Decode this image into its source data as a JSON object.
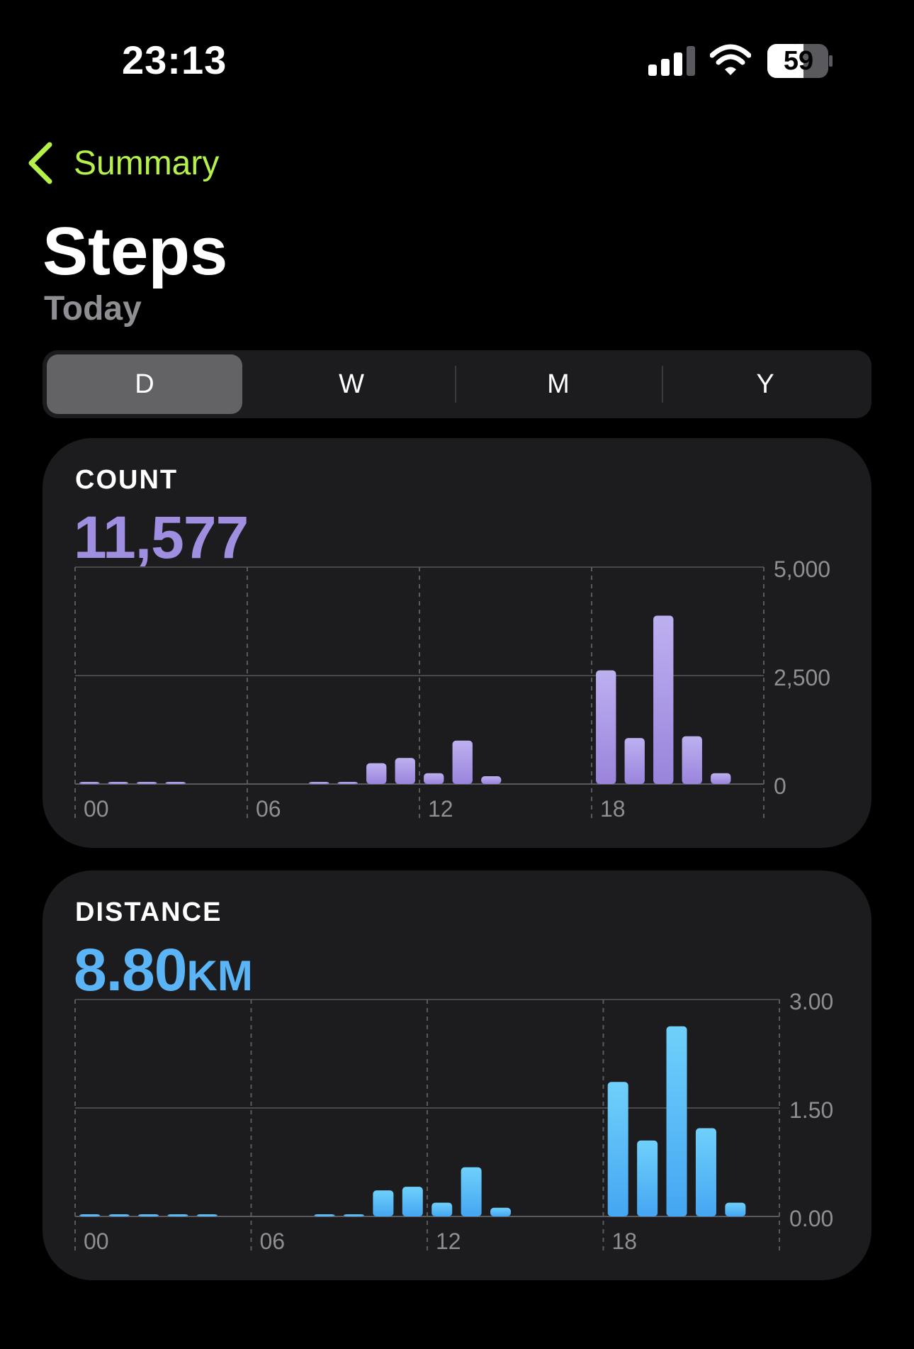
{
  "status_bar": {
    "time": "23:13",
    "battery_level": "59",
    "icons": [
      "cellular-signal-icon",
      "wifi-icon",
      "battery-icon"
    ]
  },
  "nav": {
    "back_label": "Summary",
    "back_icon": "chevron-left-icon",
    "accent_color": "#b6f04a"
  },
  "header": {
    "title": "Steps",
    "subtitle": "Today"
  },
  "segments": {
    "options": [
      "D",
      "W",
      "M",
      "Y"
    ],
    "selected": "D"
  },
  "count_card": {
    "label": "COUNT",
    "value": "11,577",
    "color": "#a08ee0",
    "chart_data": {
      "type": "bar",
      "x_ticks": [
        "00",
        "06",
        "12",
        "18"
      ],
      "y_ticks": [
        "5,000",
        "2,500",
        "0"
      ],
      "ylim": [
        0,
        5000
      ],
      "grid": true,
      "hours": [
        0,
        1,
        2,
        3,
        4,
        5,
        6,
        7,
        8,
        9,
        10,
        11,
        12,
        13,
        14,
        15,
        16,
        17,
        18,
        19,
        20,
        21,
        22,
        23
      ],
      "values": [
        20,
        20,
        20,
        20,
        0,
        0,
        0,
        0,
        40,
        40,
        480,
        600,
        250,
        1000,
        180,
        0,
        0,
        0,
        2620,
        1060,
        3880,
        1100,
        250,
        0
      ]
    }
  },
  "distance_card": {
    "label": "DISTANCE",
    "value": "8.80",
    "unit": "KM",
    "color": "#5ab4f5",
    "chart_data": {
      "type": "bar",
      "x_ticks": [
        "00",
        "06",
        "12",
        "18"
      ],
      "y_ticks": [
        "3.00",
        "1.50",
        "0.00"
      ],
      "ylim": [
        0,
        3
      ],
      "grid": true,
      "hours": [
        0,
        1,
        2,
        3,
        4,
        5,
        6,
        7,
        8,
        9,
        10,
        11,
        12,
        13,
        14,
        15,
        16,
        17,
        18,
        19,
        20,
        21,
        22,
        23
      ],
      "values": [
        0.01,
        0.01,
        0.01,
        0.01,
        0.01,
        0,
        0,
        0,
        0.02,
        0.02,
        0.36,
        0.41,
        0.19,
        0.68,
        0.12,
        0,
        0,
        0,
        1.86,
        1.05,
        2.63,
        1.22,
        0.19,
        0
      ]
    }
  }
}
